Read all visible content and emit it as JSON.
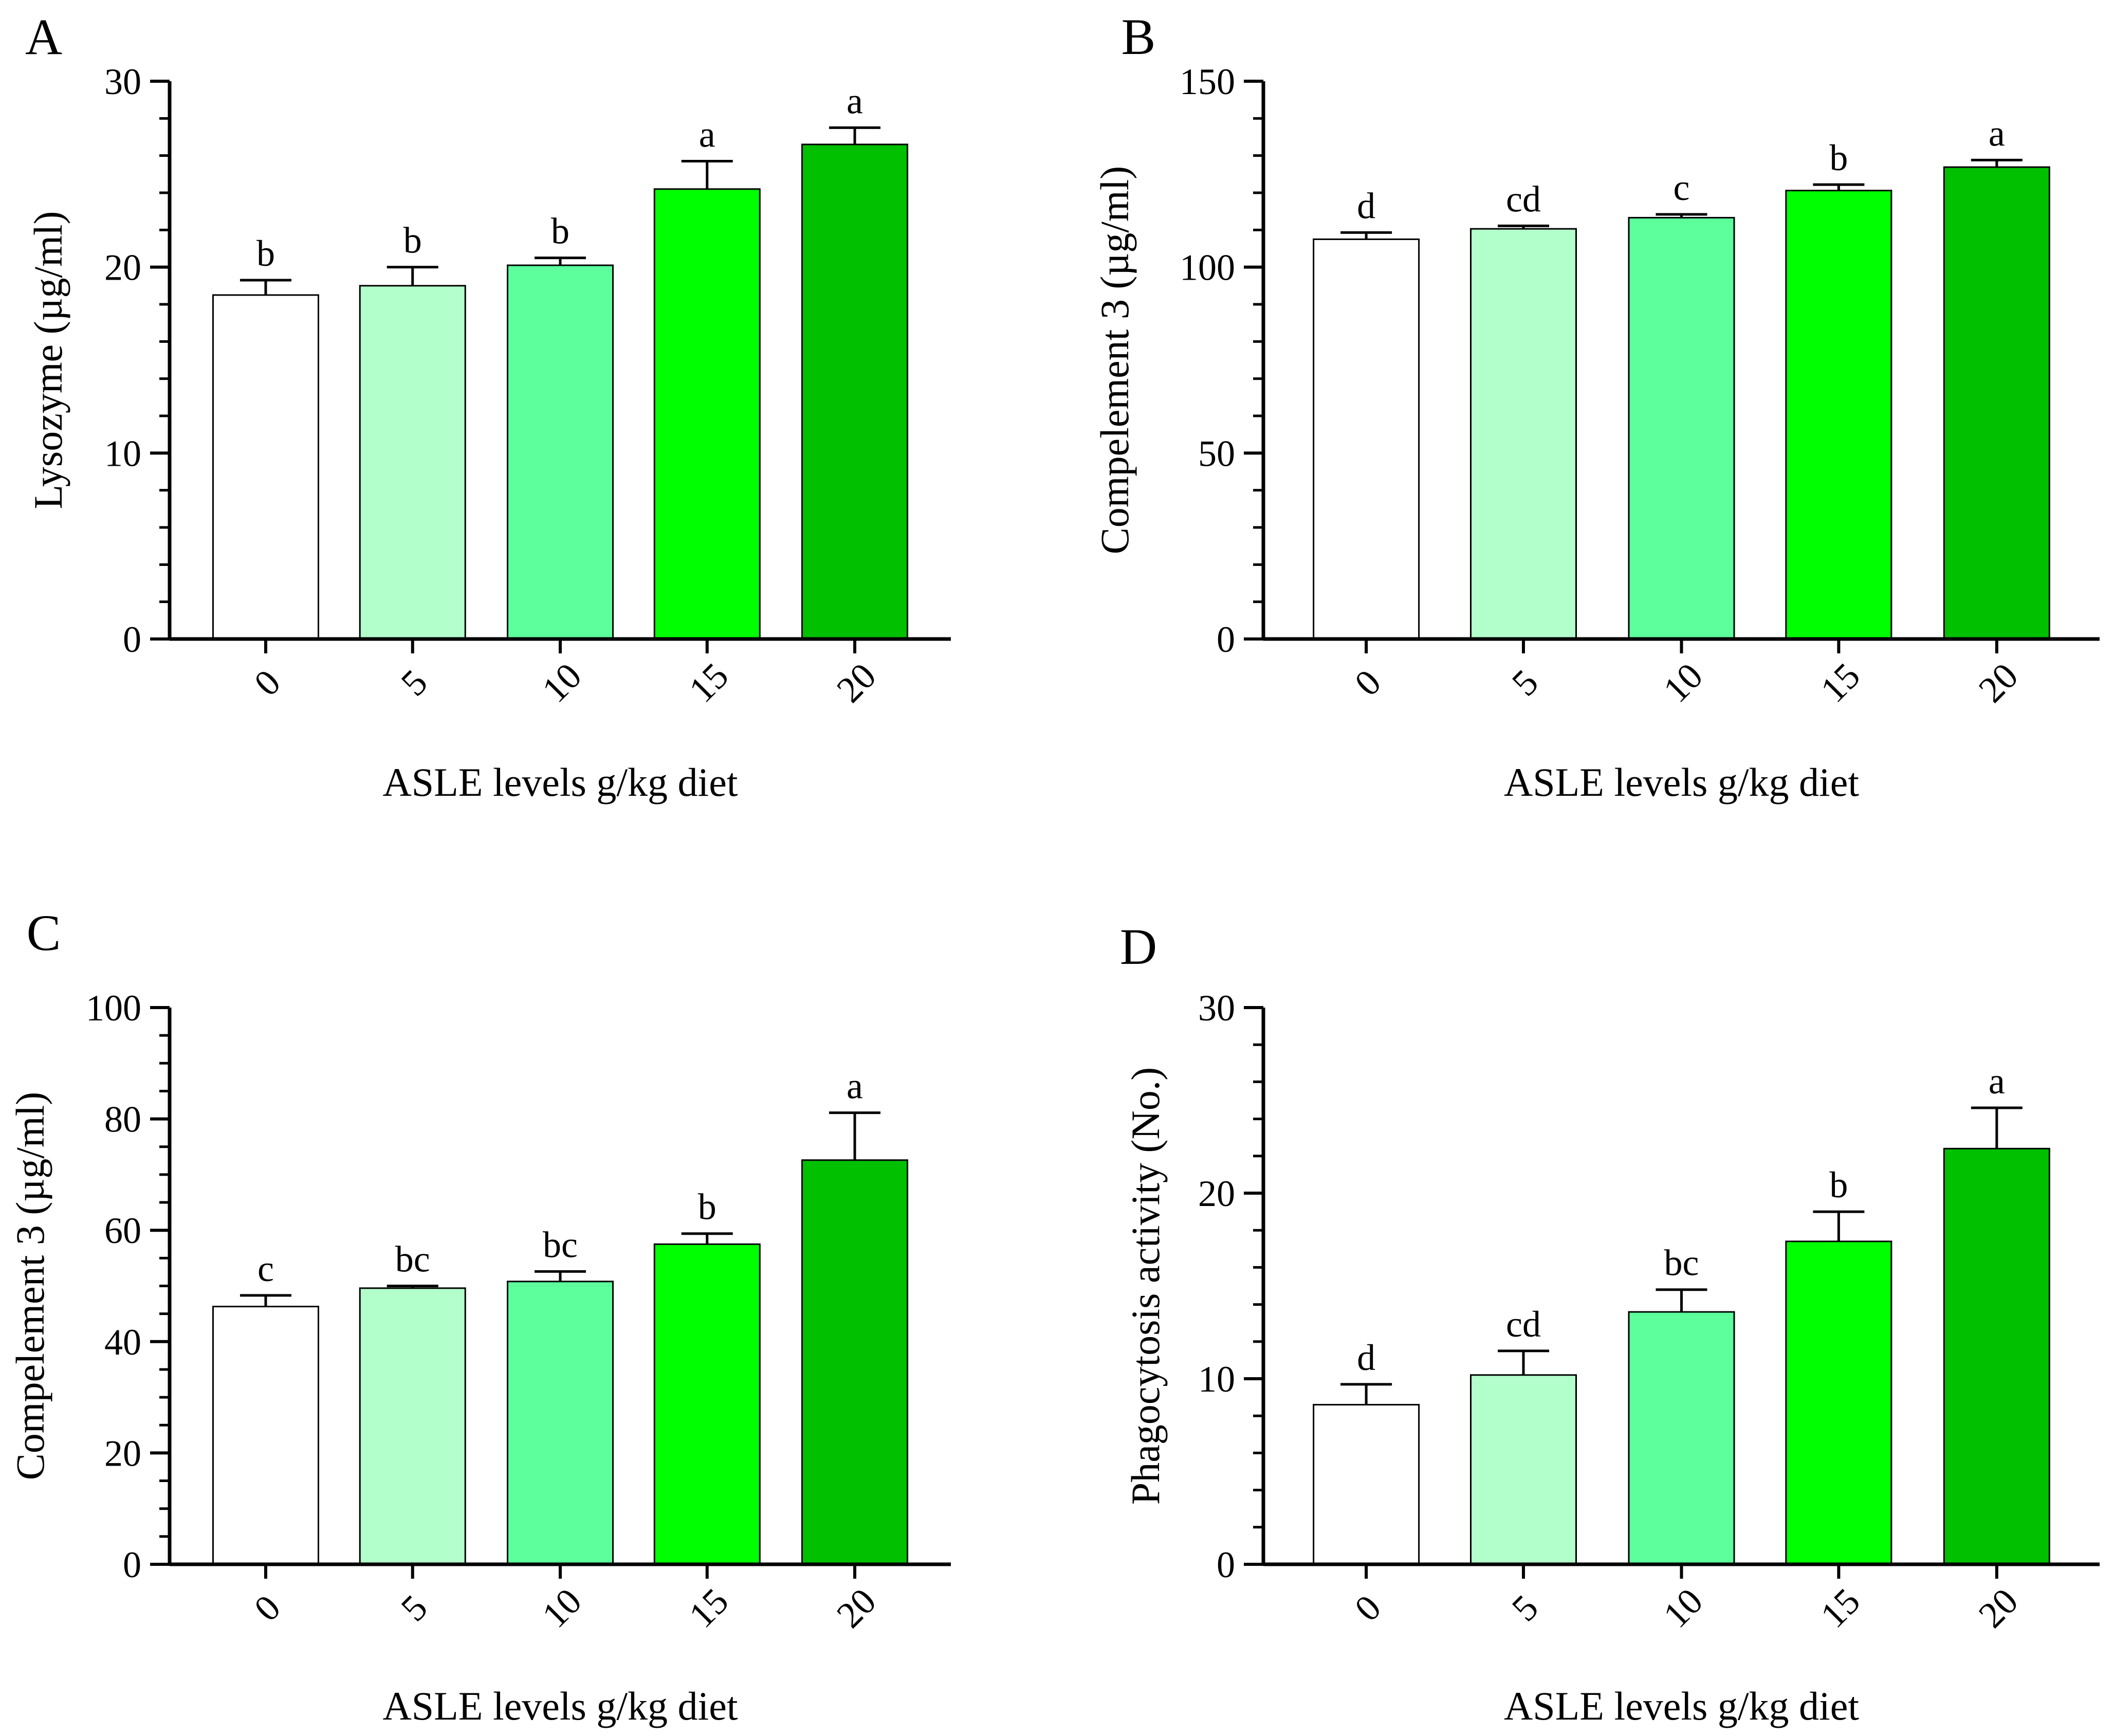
{
  "chart_data": [
    {
      "panel": "A",
      "type": "bar",
      "categories": [
        "0",
        "5",
        "10",
        "15",
        "20"
      ],
      "values": [
        18.5,
        19.0,
        20.1,
        24.2,
        26.6
      ],
      "errors": [
        0.8,
        1.0,
        0.4,
        1.5,
        0.9
      ],
      "significance": [
        "b",
        "b",
        "b",
        "a",
        "a"
      ],
      "colors": [
        "#ffffff",
        "#b3ffcc",
        "#5cff9c",
        "#00ff00",
        "#00c000"
      ],
      "xlabel": "ASLE levels g/kg diet",
      "ylabel": "Lysozyme (µg/ml)",
      "ylim": [
        0,
        30
      ],
      "yticks": [
        0,
        10,
        20,
        30
      ],
      "minor_per_major": 5
    },
    {
      "panel": "B",
      "type": "bar",
      "categories": [
        "0",
        "5",
        "10",
        "15",
        "20"
      ],
      "values": [
        107.5,
        110.3,
        113.3,
        120.6,
        126.9
      ],
      "errors": [
        1.8,
        0.8,
        0.9,
        1.6,
        1.9
      ],
      "significance": [
        "d",
        "cd",
        "c",
        "b",
        "a"
      ],
      "colors": [
        "#ffffff",
        "#b3ffcc",
        "#5cff9c",
        "#00ff00",
        "#00c000"
      ],
      "xlabel": "ASLE levels g/kg diet",
      "ylabel": "Compelement 3  (µg/ml)",
      "ylim": [
        0,
        150
      ],
      "yticks": [
        0,
        50,
        100,
        150
      ],
      "minor_per_major": 5
    },
    {
      "panel": "C",
      "type": "bar",
      "categories": [
        "0",
        "5",
        "10",
        "15",
        "20"
      ],
      "values": [
        46.3,
        49.6,
        50.8,
        57.5,
        72.6
      ],
      "errors": [
        2.0,
        0.4,
        1.8,
        1.9,
        8.5
      ],
      "significance": [
        "c",
        "bc",
        "bc",
        "b",
        "a"
      ],
      "colors": [
        "#ffffff",
        "#b3ffcc",
        "#5cff9c",
        "#00ff00",
        "#00c000"
      ],
      "xlabel": "ASLE levels g/kg diet",
      "ylabel": "Compelement 3  (µg/ml)",
      "ylim": [
        0,
        100
      ],
      "yticks": [
        0,
        20,
        40,
        60,
        80,
        100
      ],
      "minor_per_major": 4
    },
    {
      "panel": "D",
      "type": "bar",
      "categories": [
        "0",
        "5",
        "10",
        "15",
        "20"
      ],
      "values": [
        8.6,
        10.2,
        13.6,
        17.4,
        22.4
      ],
      "errors": [
        1.1,
        1.3,
        1.2,
        1.6,
        2.2
      ],
      "significance": [
        "d",
        "cd",
        "bc",
        "b",
        "a"
      ],
      "colors": [
        "#ffffff",
        "#b3ffcc",
        "#5cff9c",
        "#00ff00",
        "#00c000"
      ],
      "xlabel": "ASLE levels g/kg diet",
      "ylabel": "Phagocytosis activity (No.)",
      "ylim": [
        0,
        30
      ],
      "yticks": [
        0,
        10,
        20,
        30
      ],
      "minor_per_major": 5
    }
  ]
}
